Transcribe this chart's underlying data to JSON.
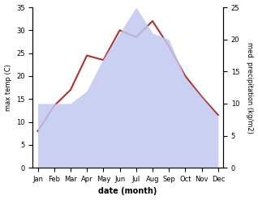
{
  "months": [
    "Jan",
    "Feb",
    "Mar",
    "Apr",
    "May",
    "Jun",
    "Jul",
    "Aug",
    "Sep",
    "Oct",
    "Nov",
    "Dec"
  ],
  "temp_max": [
    8.0,
    13.5,
    17.0,
    24.5,
    23.5,
    30.0,
    28.5,
    32.0,
    26.5,
    20.0,
    15.5,
    11.5
  ],
  "precipitation": [
    10,
    10,
    10,
    12,
    17,
    21,
    25,
    21,
    20,
    14,
    11,
    8
  ],
  "temp_ylim": [
    0,
    35
  ],
  "precip_ylim": [
    0,
    25
  ],
  "temp_color": "#b03030",
  "precip_fill_color": "#c0c8f0",
  "precip_fill_alpha": 0.85,
  "ylabel_left": "max temp (C)",
  "ylabel_right": "med. precipitation (kg/m2)",
  "xlabel": "date (month)",
  "bg_color": "#ffffff",
  "fig_width": 3.18,
  "fig_height": 2.47,
  "dpi": 100,
  "left_yticks": [
    0,
    5,
    10,
    15,
    20,
    25,
    30,
    35
  ],
  "right_yticks": [
    0,
    5,
    10,
    15,
    20,
    25
  ],
  "tick_labelsize": 6,
  "label_fontsize": 6,
  "xlabel_fontsize": 7
}
